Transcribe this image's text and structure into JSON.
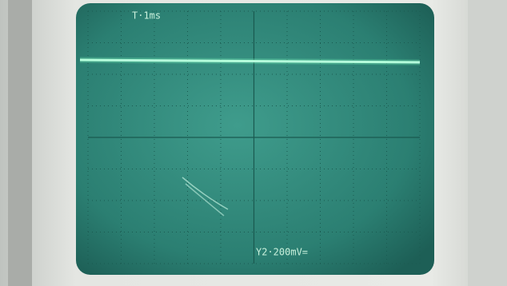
{
  "screen": {
    "time_label": "T·1ms",
    "volt_label": "Y2·200mV="
  }
}
